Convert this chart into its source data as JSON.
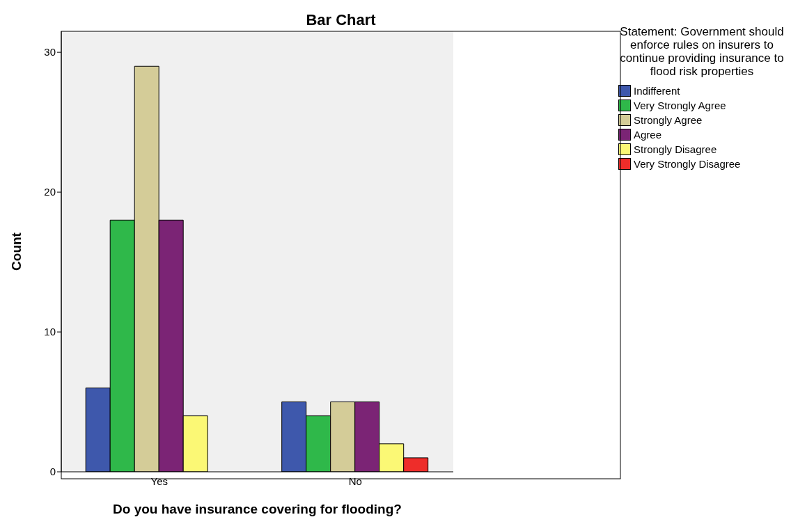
{
  "chart_data": {
    "type": "bar",
    "title": "Bar Chart",
    "xlabel": "Do you have insurance covering for flooding?",
    "ylabel": "Count",
    "legend_title": "Statement: Government should enforce rules on insurers to continue providing insurance to flood risk properties",
    "categories": [
      "Yes",
      "No"
    ],
    "series": [
      {
        "name": "Indifferent",
        "color": "#3e58ac",
        "values": [
          6,
          5
        ]
      },
      {
        "name": "Very Strongly Agree",
        "color": "#2fb84a",
        "values": [
          18,
          4
        ]
      },
      {
        "name": "Strongly Agree",
        "color": "#d4cc98",
        "values": [
          29,
          5
        ]
      },
      {
        "name": "Agree",
        "color": "#7b2475",
        "values": [
          18,
          5
        ]
      },
      {
        "name": "Strongly Disagree",
        "color": "#fbf875",
        "values": [
          4,
          2
        ]
      },
      {
        "name": "Very Strongly Disagree",
        "color": "#ee2d2a",
        "values": [
          null,
          1
        ]
      }
    ],
    "ylim": [
      0,
      31.5
    ],
    "yticks": [
      0,
      10,
      20,
      30
    ],
    "legend": "top right"
  }
}
